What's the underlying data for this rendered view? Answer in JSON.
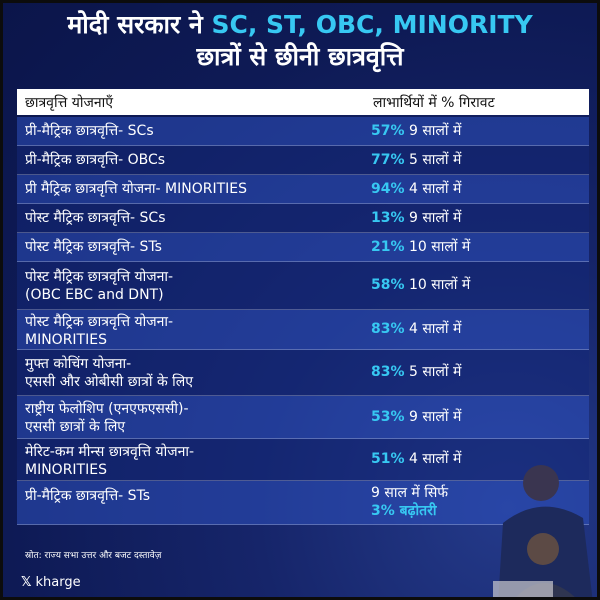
{
  "title": {
    "line1_prefix": "मोदी सरकार ने ",
    "line1_accent": "SC, ST, OBC, MINORITY",
    "line2": "छात्रों से छीनी छात्रवृत्ति"
  },
  "table": {
    "headers": {
      "scheme": "छात्रवृत्ति योजनाएँ",
      "decline": "लाभार्थियों में % गिरावट"
    },
    "rows": [
      {
        "scheme": "प्री-मैट्रिक छात्रवृत्ति- SCs",
        "pct": "57%",
        "period": " 9 सालों में"
      },
      {
        "scheme": "प्री-मैट्रिक छात्रवृत्ति- OBCs",
        "pct": "77%",
        "period": " 5 सालों में"
      },
      {
        "scheme": "प्री मैट्रिक छात्रवृत्ति योजना- MINORITIES",
        "pct": "94%",
        "period": " 4 सालों में"
      },
      {
        "scheme": "पोस्ट मैट्रिक छात्रवृत्ति- SCs",
        "pct": "13%",
        "period": " 9 सालों में"
      },
      {
        "scheme": "पोस्ट मैट्रिक छात्रवृत्ति- STs",
        "pct": "21%",
        "period": " 10 सालों में"
      },
      {
        "scheme": "पोस्ट मैट्रिक छात्रवृत्ति  योजना-\n(OBC EBC and DNT)",
        "pct": "58%",
        "period": " 10 सालों में"
      },
      {
        "scheme": "पोस्ट मैट्रिक छात्रवृत्ति योजना-\nMINORITIES",
        "pct": "83%",
        "period": " 4 सालों में"
      },
      {
        "scheme": "मुफ्त कोचिंग योजना-\nएससी और ओबीसी छात्रों के लिए",
        "pct": "83%",
        "period": " 5 सालों में"
      },
      {
        "scheme": "राष्ट्रीय फेलोशिप (एनएफएससी)-\nएससी छात्रों के लिए",
        "pct": "53%",
        "period": " 9 सालों में"
      },
      {
        "scheme": "मेरिट-कम मीन्स छात्रवृत्ति योजना-\nMINORITIES",
        "pct": "51%",
        "period": " 4 सालों में"
      }
    ],
    "last_row": {
      "scheme": "प्री-मैट्रिक छात्रवृत्ति- STs",
      "line1": "9 साल में सिर्फ",
      "line2": "3% बढ़ोतरी"
    }
  },
  "source": "स्रोत: राज्य सभा उत्तर और बजट दस्तावेज़",
  "handle": {
    "icon": "x-logo-icon",
    "name": "kharge"
  },
  "colors": {
    "accent": "#37c8f2",
    "background": "#0e1a55"
  }
}
